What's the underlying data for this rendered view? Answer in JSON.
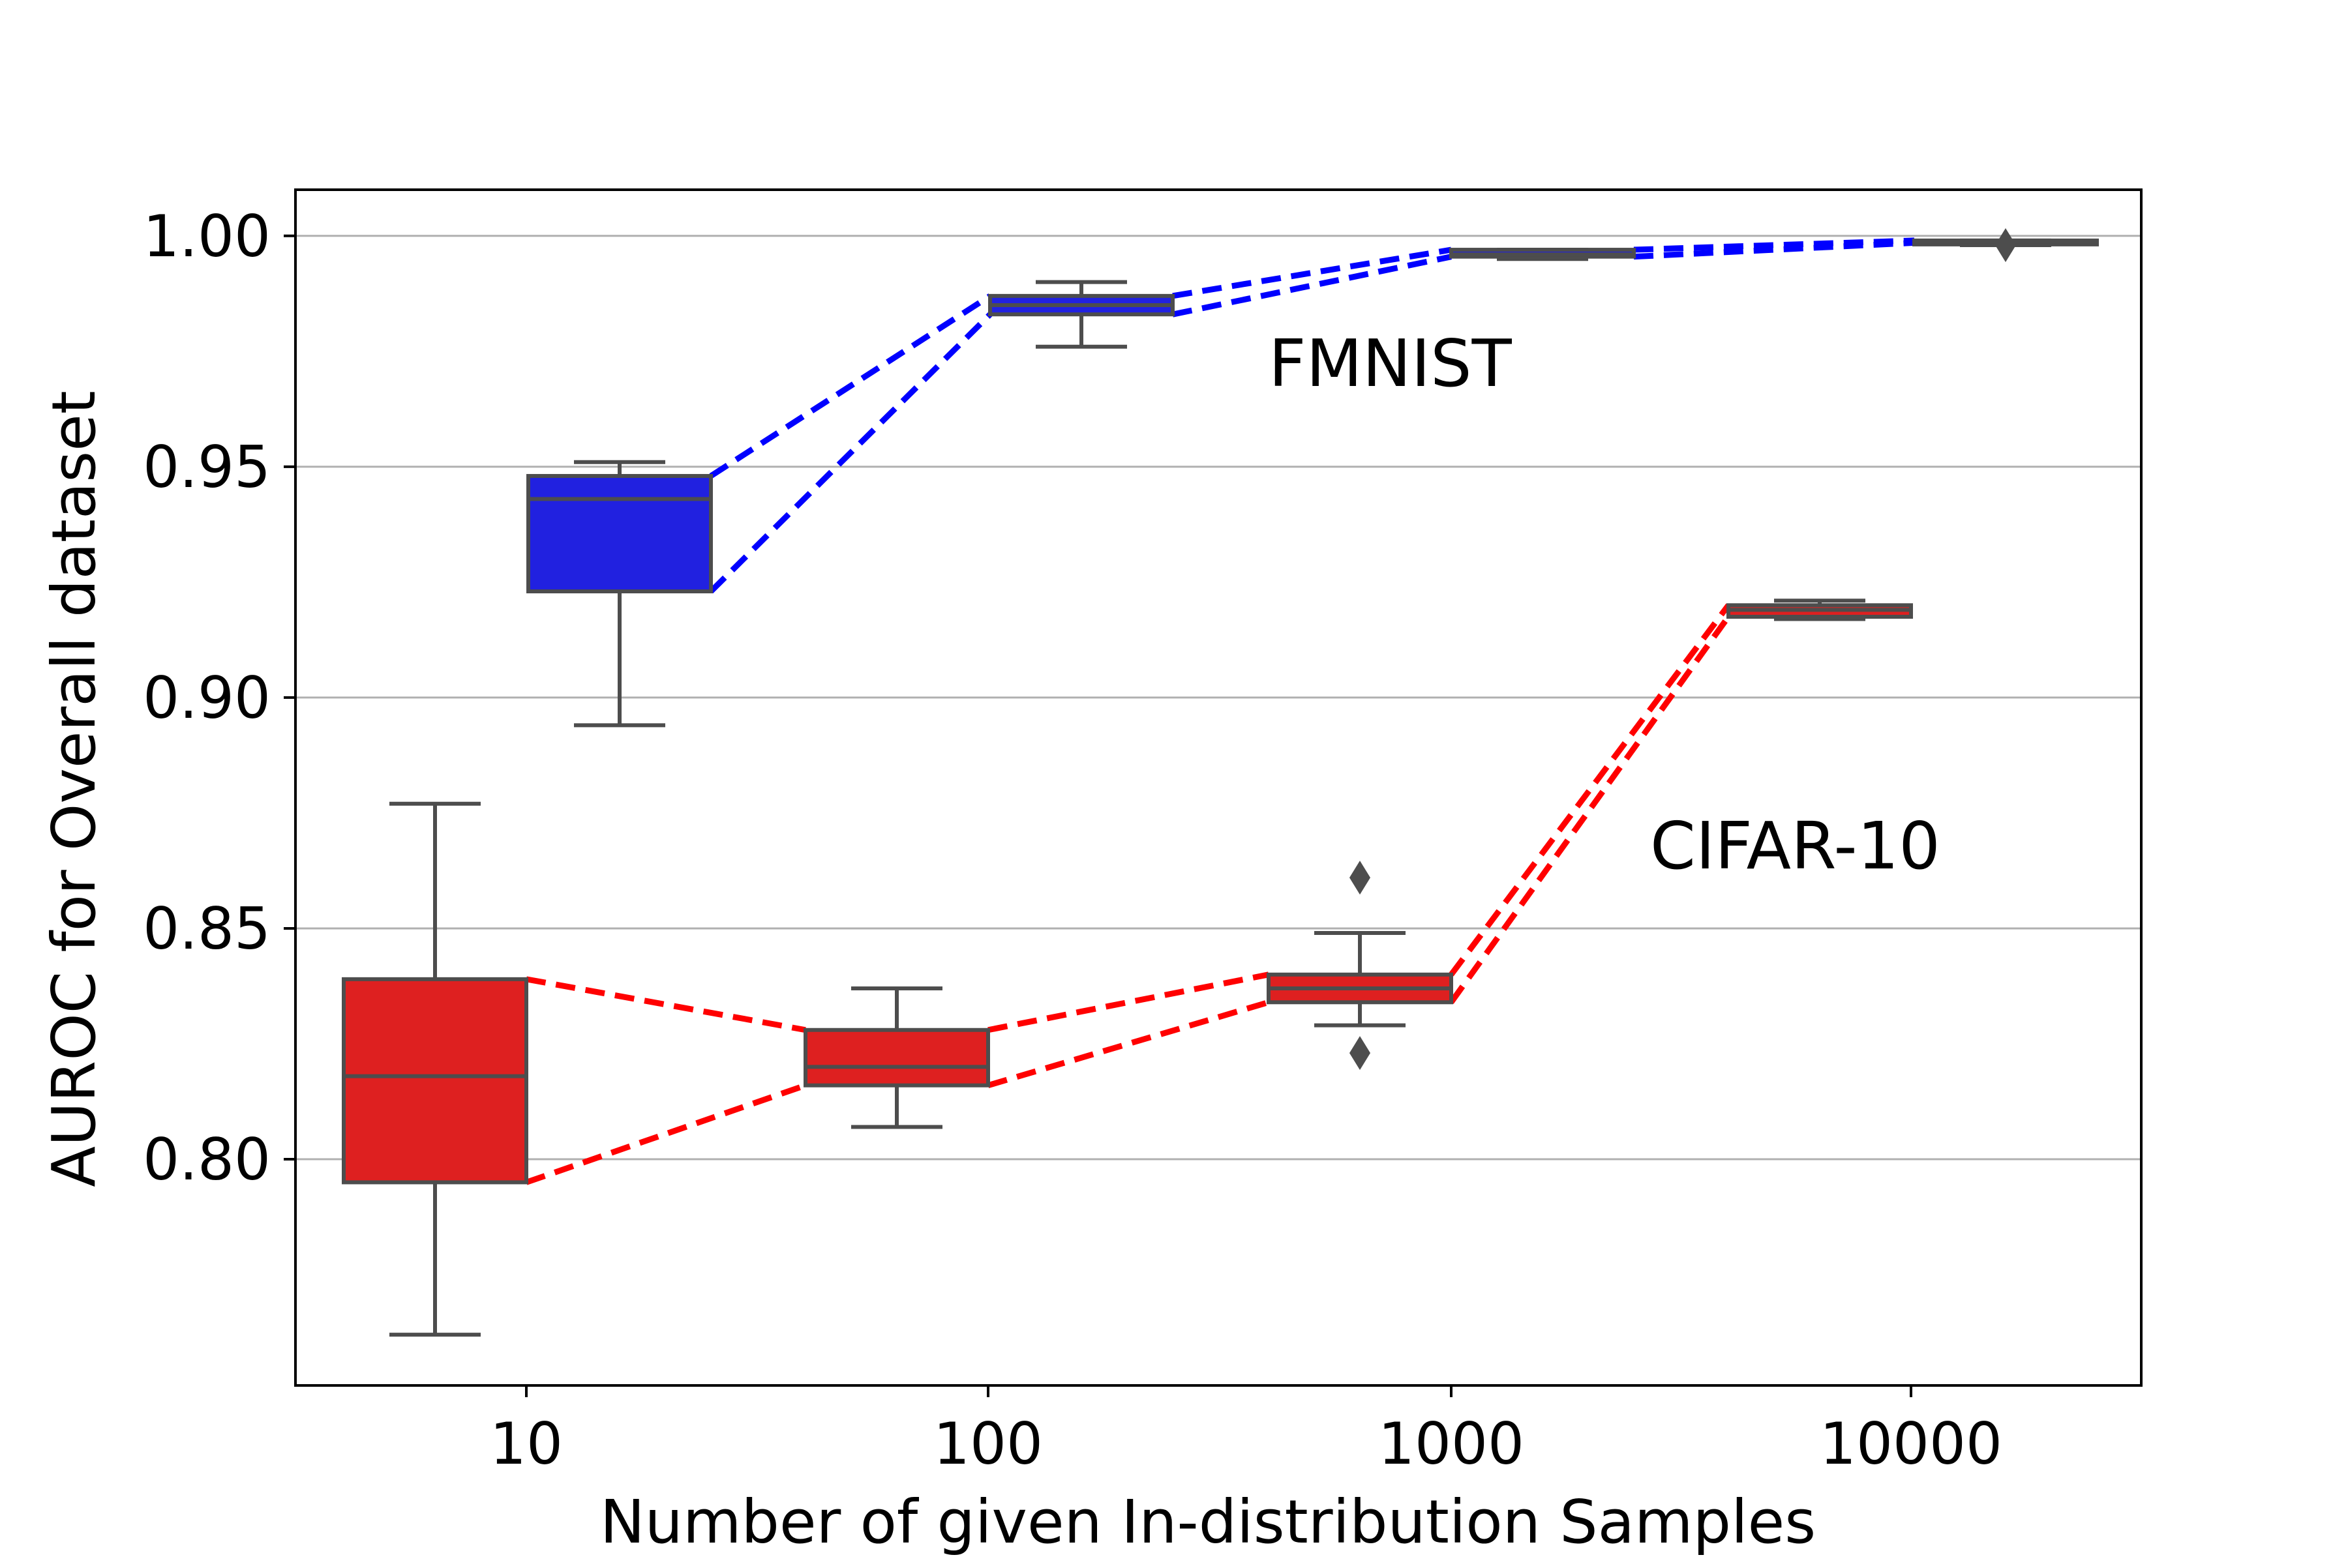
{
  "chart_data": {
    "type": "box",
    "title": "",
    "xlabel": "Number of given In-distribution Samples",
    "ylabel": "AUROC for Overall dataset",
    "ylim": [
      0.751,
      1.01
    ],
    "yticks": [
      "0.80",
      "0.85",
      "0.90",
      "0.95",
      "1.00"
    ],
    "ytick_values": [
      0.8,
      0.85,
      0.9,
      0.95,
      1.0
    ],
    "xticks": [
      "10",
      "100",
      "1000",
      "10000"
    ],
    "grid": "horizontal",
    "legend": "none",
    "colors": {
      "fmnist_box": "#2121e0",
      "fmnist_line": "#0000ff",
      "cifar_box": "#de2020",
      "cifar_line": "#ff0000",
      "box_edge": "#4d4d4d",
      "grid": "#b0b0b0"
    },
    "series": [
      {
        "name": "FMNIST",
        "annotation": "FMNIST",
        "boxes": [
          {
            "x": "10",
            "whislo": 0.894,
            "q1": 0.923,
            "med": 0.943,
            "q3": 0.948,
            "whishi": 0.951,
            "fliers": []
          },
          {
            "x": "100",
            "whislo": 0.976,
            "q1": 0.983,
            "med": 0.985,
            "q3": 0.987,
            "whishi": 0.99,
            "fliers": []
          },
          {
            "x": "1000",
            "whislo": 0.995,
            "q1": 0.9955,
            "med": 0.996,
            "q3": 0.997,
            "whishi": 0.997,
            "fliers": []
          },
          {
            "x": "10000",
            "whislo": 0.998,
            "q1": 0.9985,
            "med": 0.9988,
            "q3": 0.999,
            "whishi": 0.999,
            "fliers": [
              0.998
            ]
          }
        ]
      },
      {
        "name": "CIFAR-10",
        "annotation": "CIFAR-10",
        "boxes": [
          {
            "x": "10",
            "whislo": 0.762,
            "q1": 0.795,
            "med": 0.818,
            "q3": 0.839,
            "whishi": 0.877,
            "fliers": []
          },
          {
            "x": "100",
            "whislo": 0.807,
            "q1": 0.816,
            "med": 0.82,
            "q3": 0.828,
            "whishi": 0.837,
            "fliers": []
          },
          {
            "x": "1000",
            "whislo": 0.829,
            "q1": 0.834,
            "med": 0.837,
            "q3": 0.84,
            "whishi": 0.849,
            "fliers": [
              0.861,
              0.823
            ]
          },
          {
            "x": "10000",
            "whislo": 0.917,
            "q1": 0.9175,
            "med": 0.919,
            "q3": 0.92,
            "whishi": 0.921,
            "fliers": []
          }
        ]
      }
    ]
  }
}
